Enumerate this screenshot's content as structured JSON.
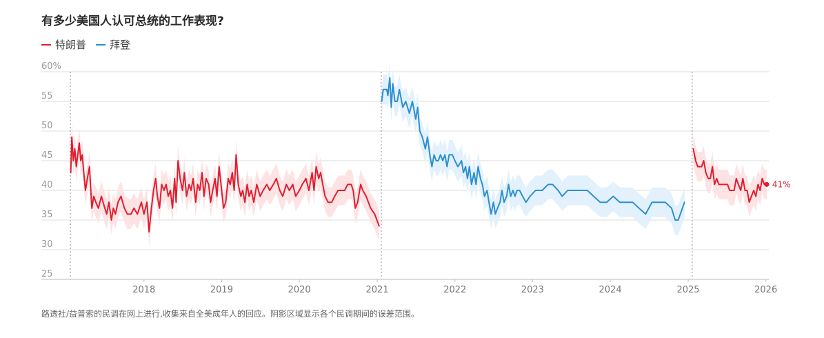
{
  "title": "有多少美国人认可总统的工作表现?",
  "note": "路透社/益普索的民调在网上进行,收集来自全美成年人的回应。阴影区域显示各个民调期间的误差范围。",
  "colors": {
    "trump": "#e11d2e",
    "biden": "#2c8fcf",
    "trump_band": "#fde3e4",
    "biden_band": "#e2f1fb",
    "grid": "#dddddd",
    "divider": "#888888"
  },
  "legend": [
    {
      "name": "特朗普",
      "color": "#e11d2e"
    },
    {
      "name": "拜登",
      "color": "#2c8fcf"
    }
  ],
  "chart_data": {
    "type": "line",
    "title": "有多少美国人认可总统的工作表现?",
    "ylim": [
      25,
      60
    ],
    "xlim": [
      "2017-01-20",
      "2026-01-15"
    ],
    "y_ticks": [
      "60%",
      "55",
      "50",
      "45",
      "40",
      "35",
      "30",
      "25"
    ],
    "x_ticks": [
      {
        "label": "2018",
        "date": "2018-01-01"
      },
      {
        "label": "2019",
        "date": "2019-01-01"
      },
      {
        "label": "2020",
        "date": "2020-01-01"
      },
      {
        "label": "2021",
        "date": "2021-01-01"
      },
      {
        "label": "2022",
        "date": "2022-01-01"
      },
      {
        "label": "2023",
        "date": "2023-01-01"
      },
      {
        "label": "2024",
        "date": "2024-01-01"
      },
      {
        "label": "2025",
        "date": "2025-01-01"
      },
      {
        "label": "2026",
        "date": "2026-01-01"
      }
    ],
    "dividers": [
      "2017-01-20",
      "2021-01-20",
      "2025-01-20"
    ],
    "end_label": "41%",
    "band_margin": 2.5,
    "series": [
      {
        "name": "特朗普",
        "color": "#e11d2e",
        "points": [
          [
            "2017-01-22",
            43
          ],
          [
            "2017-01-27",
            49
          ],
          [
            "2017-02-03",
            45
          ],
          [
            "2017-02-10",
            47
          ],
          [
            "2017-02-17",
            44
          ],
          [
            "2017-02-24",
            46
          ],
          [
            "2017-03-03",
            48
          ],
          [
            "2017-03-10",
            45
          ],
          [
            "2017-03-17",
            46
          ],
          [
            "2017-03-24",
            43
          ],
          [
            "2017-04-01",
            40
          ],
          [
            "2017-04-10",
            42
          ],
          [
            "2017-04-20",
            44
          ],
          [
            "2017-05-01",
            37
          ],
          [
            "2017-05-10",
            39
          ],
          [
            "2017-05-20",
            38
          ],
          [
            "2017-06-01",
            37
          ],
          [
            "2017-06-15",
            39
          ],
          [
            "2017-07-01",
            37
          ],
          [
            "2017-07-10",
            36
          ],
          [
            "2017-07-20",
            38
          ],
          [
            "2017-08-01",
            35
          ],
          [
            "2017-08-10",
            37
          ],
          [
            "2017-08-20",
            36
          ],
          [
            "2017-09-01",
            38
          ],
          [
            "2017-09-15",
            39
          ],
          [
            "2017-10-01",
            37
          ],
          [
            "2017-10-15",
            36
          ],
          [
            "2017-11-01",
            36
          ],
          [
            "2017-11-15",
            37
          ],
          [
            "2017-12-01",
            36
          ],
          [
            "2017-12-20",
            38
          ],
          [
            "2018-01-01",
            36
          ],
          [
            "2018-01-15",
            38
          ],
          [
            "2018-01-25",
            33
          ],
          [
            "2018-02-05",
            37
          ],
          [
            "2018-02-15",
            40
          ],
          [
            "2018-02-25",
            42
          ],
          [
            "2018-03-05",
            39
          ],
          [
            "2018-03-15",
            37
          ],
          [
            "2018-03-25",
            41
          ],
          [
            "2018-04-05",
            40
          ],
          [
            "2018-04-15",
            41
          ],
          [
            "2018-04-25",
            39
          ],
          [
            "2018-05-05",
            40
          ],
          [
            "2018-05-15",
            37
          ],
          [
            "2018-05-25",
            42
          ],
          [
            "2018-06-01",
            38
          ],
          [
            "2018-06-10",
            45
          ],
          [
            "2018-06-20",
            42
          ],
          [
            "2018-07-01",
            40
          ],
          [
            "2018-07-10",
            43
          ],
          [
            "2018-07-20",
            39
          ],
          [
            "2018-08-01",
            41
          ],
          [
            "2018-08-10",
            40
          ],
          [
            "2018-08-20",
            42
          ],
          [
            "2018-09-01",
            38
          ],
          [
            "2018-09-10",
            41
          ],
          [
            "2018-09-20",
            40
          ],
          [
            "2018-10-01",
            43
          ],
          [
            "2018-10-10",
            39
          ],
          [
            "2018-10-20",
            42
          ],
          [
            "2018-11-01",
            41
          ],
          [
            "2018-11-10",
            38
          ],
          [
            "2018-11-20",
            40
          ],
          [
            "2018-12-01",
            42
          ],
          [
            "2018-12-10",
            39
          ],
          [
            "2018-12-20",
            44
          ],
          [
            "2019-01-01",
            40
          ],
          [
            "2019-01-10",
            37
          ],
          [
            "2019-01-20",
            38
          ],
          [
            "2019-02-01",
            42
          ],
          [
            "2019-02-10",
            41
          ],
          [
            "2019-02-20",
            43
          ],
          [
            "2019-03-01",
            40
          ],
          [
            "2019-03-10",
            46
          ],
          [
            "2019-03-20",
            41
          ],
          [
            "2019-04-01",
            39
          ],
          [
            "2019-04-10",
            40
          ],
          [
            "2019-04-20",
            38
          ],
          [
            "2019-05-01",
            41
          ],
          [
            "2019-05-10",
            39
          ],
          [
            "2019-05-20",
            40
          ],
          [
            "2019-06-01",
            38
          ],
          [
            "2019-06-15",
            41
          ],
          [
            "2019-07-01",
            39
          ],
          [
            "2019-07-15",
            40
          ],
          [
            "2019-08-01",
            41
          ],
          [
            "2019-08-15",
            40
          ],
          [
            "2019-09-01",
            41
          ],
          [
            "2019-09-15",
            42
          ],
          [
            "2019-10-01",
            40
          ],
          [
            "2019-10-15",
            39
          ],
          [
            "2019-11-01",
            41
          ],
          [
            "2019-11-15",
            40
          ],
          [
            "2019-12-01",
            41
          ],
          [
            "2019-12-15",
            39
          ],
          [
            "2020-01-01",
            40
          ],
          [
            "2020-01-15",
            41
          ],
          [
            "2020-02-01",
            42
          ],
          [
            "2020-02-15",
            40
          ],
          [
            "2020-03-01",
            43
          ],
          [
            "2020-03-10",
            40
          ],
          [
            "2020-03-20",
            44
          ],
          [
            "2020-04-01",
            42
          ],
          [
            "2020-04-10",
            43
          ],
          [
            "2020-04-20",
            41
          ],
          [
            "2020-05-01",
            39
          ],
          [
            "2020-05-15",
            38
          ],
          [
            "2020-06-01",
            38
          ],
          [
            "2020-06-15",
            39
          ],
          [
            "2020-07-01",
            40
          ],
          [
            "2020-08-01",
            40
          ],
          [
            "2020-08-15",
            41
          ],
          [
            "2020-09-01",
            41
          ],
          [
            "2020-09-10",
            40
          ],
          [
            "2020-09-20",
            37
          ],
          [
            "2020-10-01",
            38
          ],
          [
            "2020-10-15",
            41
          ],
          [
            "2020-10-25",
            40
          ],
          [
            "2020-11-10",
            39
          ],
          [
            "2020-12-01",
            37
          ],
          [
            "2020-12-20",
            36
          ],
          [
            "2021-01-10",
            34
          ]
        ]
      },
      {
        "name": "拜登",
        "color": "#2c8fcf",
        "points": [
          [
            "2021-01-22",
            55
          ],
          [
            "2021-01-29",
            57
          ],
          [
            "2021-02-15",
            57
          ],
          [
            "2021-02-20",
            56
          ],
          [
            "2021-03-01",
            59
          ],
          [
            "2021-03-08",
            54
          ],
          [
            "2021-03-15",
            58
          ],
          [
            "2021-03-25",
            55
          ],
          [
            "2021-04-05",
            55
          ],
          [
            "2021-04-15",
            57
          ],
          [
            "2021-05-01",
            54
          ],
          [
            "2021-05-15",
            55
          ],
          [
            "2021-06-01",
            53
          ],
          [
            "2021-06-15",
            55
          ],
          [
            "2021-07-01",
            52
          ],
          [
            "2021-07-10",
            54
          ],
          [
            "2021-07-20",
            50
          ],
          [
            "2021-08-01",
            49
          ],
          [
            "2021-08-15",
            47
          ],
          [
            "2021-08-25",
            49
          ],
          [
            "2021-09-05",
            46
          ],
          [
            "2021-09-15",
            44
          ],
          [
            "2021-09-25",
            46
          ],
          [
            "2021-10-05",
            45
          ],
          [
            "2021-10-15",
            45
          ],
          [
            "2021-10-25",
            46
          ],
          [
            "2021-11-05",
            45
          ],
          [
            "2021-11-15",
            46
          ],
          [
            "2021-11-25",
            44
          ],
          [
            "2021-12-05",
            46
          ],
          [
            "2021-12-20",
            46
          ],
          [
            "2022-01-01",
            45
          ],
          [
            "2022-01-15",
            44
          ],
          [
            "2022-02-01",
            45
          ],
          [
            "2022-02-10",
            43
          ],
          [
            "2022-02-20",
            44
          ],
          [
            "2022-03-01",
            42
          ],
          [
            "2022-03-10",
            44
          ],
          [
            "2022-03-20",
            41
          ],
          [
            "2022-04-01",
            43
          ],
          [
            "2022-04-10",
            41
          ],
          [
            "2022-04-20",
            44
          ],
          [
            "2022-05-01",
            42
          ],
          [
            "2022-05-10",
            41
          ],
          [
            "2022-05-20",
            39
          ],
          [
            "2022-06-01",
            40
          ],
          [
            "2022-06-10",
            38
          ],
          [
            "2022-06-20",
            36
          ],
          [
            "2022-07-01",
            38
          ],
          [
            "2022-07-10",
            36
          ],
          [
            "2022-07-20",
            37
          ],
          [
            "2022-08-01",
            38
          ],
          [
            "2022-08-10",
            40
          ],
          [
            "2022-08-20",
            38
          ],
          [
            "2022-09-01",
            39
          ],
          [
            "2022-09-10",
            41
          ],
          [
            "2022-09-20",
            39
          ],
          [
            "2022-10-01",
            40
          ],
          [
            "2022-10-10",
            39
          ],
          [
            "2022-10-20",
            40
          ],
          [
            "2022-11-01",
            40
          ],
          [
            "2022-11-15",
            39
          ],
          [
            "2022-12-01",
            38
          ],
          [
            "2022-12-20",
            39
          ],
          [
            "2023-01-15",
            40
          ],
          [
            "2023-02-15",
            40
          ],
          [
            "2023-03-15",
            41
          ],
          [
            "2023-04-05",
            41
          ],
          [
            "2023-05-01",
            40
          ],
          [
            "2023-05-20",
            39
          ],
          [
            "2023-06-15",
            40
          ],
          [
            "2023-07-15",
            40
          ],
          [
            "2023-08-15",
            40
          ],
          [
            "2023-09-15",
            40
          ],
          [
            "2023-10-15",
            39
          ],
          [
            "2023-11-15",
            38
          ],
          [
            "2023-12-15",
            38
          ],
          [
            "2024-01-15",
            39
          ],
          [
            "2024-02-15",
            38
          ],
          [
            "2024-03-15",
            38
          ],
          [
            "2024-04-15",
            38
          ],
          [
            "2024-05-15",
            37
          ],
          [
            "2024-06-15",
            36
          ],
          [
            "2024-07-15",
            38
          ],
          [
            "2024-08-15",
            38
          ],
          [
            "2024-09-15",
            38
          ],
          [
            "2024-10-15",
            37
          ],
          [
            "2024-11-01",
            35
          ],
          [
            "2024-11-15",
            35
          ],
          [
            "2024-12-15",
            38
          ]
        ]
      },
      {
        "name": "特朗普",
        "color": "#e11d2e",
        "points": [
          [
            "2025-01-25",
            47
          ],
          [
            "2025-02-05",
            45
          ],
          [
            "2025-02-15",
            44
          ],
          [
            "2025-02-25",
            44
          ],
          [
            "2025-03-05",
            44
          ],
          [
            "2025-03-15",
            45
          ],
          [
            "2025-03-25",
            43
          ],
          [
            "2025-04-05",
            42
          ],
          [
            "2025-04-15",
            42
          ],
          [
            "2025-04-25",
            44
          ],
          [
            "2025-05-05",
            41
          ],
          [
            "2025-05-15",
            42
          ],
          [
            "2025-05-25",
            41
          ],
          [
            "2025-06-05",
            41
          ],
          [
            "2025-06-15",
            41
          ],
          [
            "2025-06-25",
            41
          ],
          [
            "2025-07-05",
            41
          ],
          [
            "2025-07-15",
            40
          ],
          [
            "2025-07-25",
            40
          ],
          [
            "2025-08-05",
            40
          ],
          [
            "2025-08-15",
            42
          ],
          [
            "2025-08-25",
            41
          ],
          [
            "2025-09-05",
            40
          ],
          [
            "2025-09-15",
            42
          ],
          [
            "2025-09-25",
            40
          ],
          [
            "2025-10-05",
            40
          ],
          [
            "2025-10-15",
            38
          ],
          [
            "2025-10-25",
            39
          ],
          [
            "2025-11-05",
            40
          ],
          [
            "2025-11-15",
            39
          ],
          [
            "2025-11-25",
            41
          ],
          [
            "2025-12-05",
            40
          ],
          [
            "2025-12-15",
            42
          ],
          [
            "2025-12-25",
            41
          ],
          [
            "2026-01-05",
            41
          ]
        ]
      }
    ]
  }
}
